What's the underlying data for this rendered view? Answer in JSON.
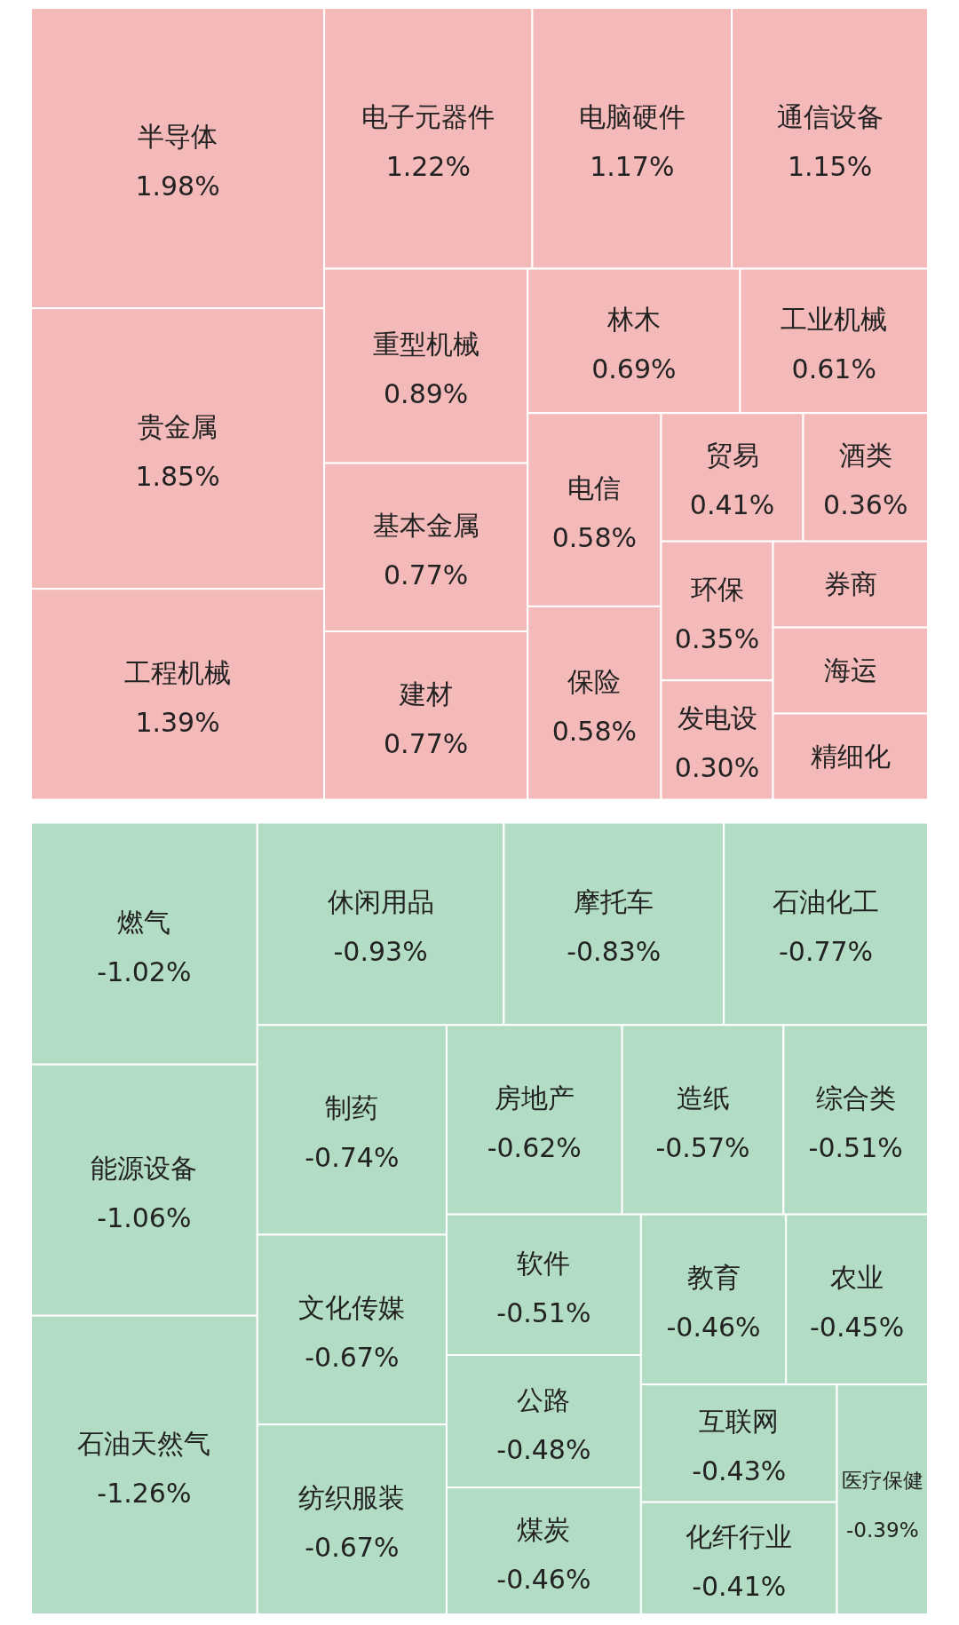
{
  "chart_data": {
    "type": "other",
    "categories": [
      "半导体",
      "贵金属",
      "工程机械",
      "电子元器件",
      "电脑硬件",
      "通信设备",
      "重型机械",
      "基本金属",
      "建材",
      "林木",
      "工业机械",
      "电信",
      "保险",
      "贸易",
      "酒类",
      "环保",
      "发电设",
      "券商",
      "海运",
      "精细化",
      "燃气",
      "能源设备",
      "石油天然气",
      "休闲用品",
      "摩托车",
      "石油化工",
      "制药",
      "文化传媒",
      "纺织服装",
      "房地产",
      "造纸",
      "综合类",
      "软件",
      "公路",
      "煤炭",
      "教育",
      "农业",
      "互联网",
      "化纤行业",
      "医疗保健"
    ],
    "values": [
      1.98,
      1.85,
      1.39,
      1.22,
      1.17,
      1.15,
      0.89,
      0.77,
      0.77,
      0.69,
      0.61,
      0.58,
      0.58,
      0.41,
      0.36,
      0.35,
      0.3,
      null,
      null,
      null,
      -1.02,
      -1.06,
      -1.26,
      -0.93,
      -0.83,
      -0.77,
      -0.74,
      -0.67,
      -0.67,
      -0.62,
      -0.57,
      -0.51,
      -0.51,
      -0.48,
      -0.46,
      -0.46,
      -0.45,
      -0.43,
      -0.41,
      -0.39
    ],
    "value_labels": [
      "1.98%",
      "1.85%",
      "1.39%",
      "1.22%",
      "1.17%",
      "1.15%",
      "0.89%",
      "0.77%",
      "0.77%",
      "0.69%",
      "0.61%",
      "0.58%",
      "0.58%",
      "0.41%",
      "0.36%",
      "0.35%",
      "0.30%",
      null,
      null,
      null,
      "-1.02%",
      "-1.06%",
      "-1.26%",
      "-0.93%",
      "-0.83%",
      "-0.77%",
      "-0.74%",
      "-0.67%",
      "-0.67%",
      "-0.62%",
      "-0.57%",
      "-0.51%",
      "-0.51%",
      "-0.48%",
      "-0.46%",
      "-0.46%",
      "-0.45%",
      "-0.43%",
      "-0.41%",
      "-0.39%"
    ],
    "colors": [
      "#f4b9b9",
      "#f4b9b9",
      "#f4b9b9",
      "#f4b9b9",
      "#f4b9b9",
      "#f4b9b9",
      "#f4b9b9",
      "#f4b9b9",
      "#f4b9b9",
      "#f4b9b9",
      "#f4b9b9",
      "#f4b9b9",
      "#f4b9b9",
      "#f4b9b9",
      "#f4b9b9",
      "#f4b9b9",
      "#f4b9b9",
      "#f4b9b9",
      "#f4b9b9",
      "#f4b9b9",
      "#b3dcc4",
      "#b3dcc4",
      "#b3dcc4",
      "#b3dcc4",
      "#b3dcc4",
      "#b3dcc4",
      "#b3dcc4",
      "#b3dcc4",
      "#b3dcc4",
      "#b3dcc4",
      "#b3dcc4",
      "#b3dcc4",
      "#b3dcc4",
      "#b3dcc4",
      "#b3dcc4",
      "#b3dcc4",
      "#b3dcc4",
      "#b3dcc4",
      "#b3dcc4",
      "#b3dcc4"
    ],
    "data_labels": true
  }
}
